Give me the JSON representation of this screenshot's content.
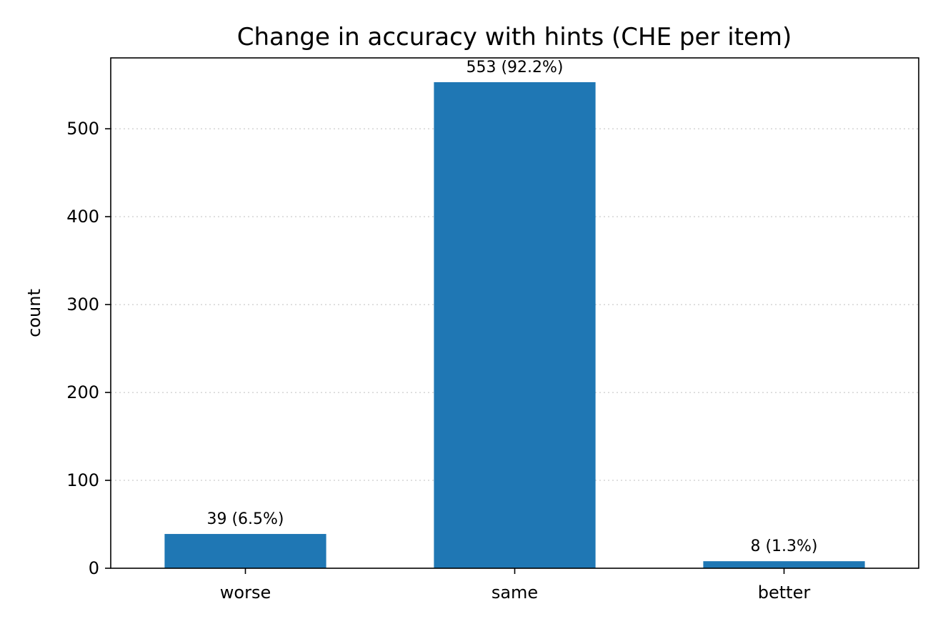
{
  "chart_data": {
    "type": "bar",
    "title": "Change in accuracy with hints (CHE per item)",
    "xlabel": "",
    "ylabel": "count",
    "categories": [
      "worse",
      "same",
      "better"
    ],
    "values": [
      39,
      553,
      8
    ],
    "data_labels": [
      "39 (6.5%)",
      "553 (92.2%)",
      "8 (1.3%)"
    ],
    "ylim": [
      0,
      580.65
    ],
    "yticks": [
      0,
      100,
      200,
      300,
      400,
      500
    ],
    "grid": "horizontal dotted",
    "bar_color": "#1f77b4",
    "legend": "none"
  }
}
